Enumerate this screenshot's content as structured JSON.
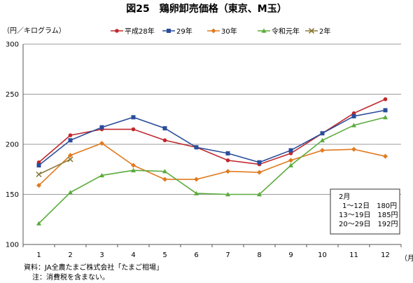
{
  "chart_data": {
    "type": "line",
    "title": "図25　鶏卵卸売価格（東京、M玉）",
    "ylabel": "（円／キログラム）",
    "xlabel": "（月）",
    "categories": [
      "1",
      "2",
      "3",
      "4",
      "5",
      "6",
      "7",
      "8",
      "9",
      "10",
      "11",
      "12"
    ],
    "ylim": [
      100,
      300
    ],
    "yticks": [
      "100",
      "150",
      "200",
      "250",
      "300"
    ],
    "grid": true,
    "legend_position": "top",
    "series": [
      {
        "name": "平成28年",
        "color": "#c0282d",
        "marker": "circle",
        "values": [
          182,
          209,
          215,
          215,
          204,
          197,
          184,
          180,
          191,
          211,
          231,
          245
        ]
      },
      {
        "name": "29年",
        "color": "#2a4d9b",
        "marker": "square",
        "values": [
          179,
          204,
          217,
          227,
          216,
          197,
          191,
          182,
          194,
          211,
          228,
          234
        ]
      },
      {
        "name": "30年",
        "color": "#e07b1f",
        "marker": "diamond",
        "values": [
          159,
          189,
          201,
          179,
          165,
          165,
          173,
          172,
          184,
          194,
          195,
          188
        ]
      },
      {
        "name": "令和元年",
        "color": "#5aab3c",
        "marker": "triangle",
        "values": [
          121,
          152,
          169,
          174,
          173,
          151,
          150,
          150,
          179,
          204,
          219,
          227
        ]
      },
      {
        "name": "2年",
        "color": "#8a7a3a",
        "marker": "x",
        "values": [
          170,
          185,
          null,
          null,
          null,
          null,
          null,
          null,
          null,
          null,
          null,
          null
        ]
      }
    ],
    "annotation": {
      "lines": [
        "2月",
        "1〜12日　180円",
        "13〜19日　185円",
        "20〜29日　192円"
      ]
    }
  },
  "footer": {
    "source": "資料：JA全農たまご株式会社「たまご相場」",
    "note": "注：消費税を含まない。"
  }
}
